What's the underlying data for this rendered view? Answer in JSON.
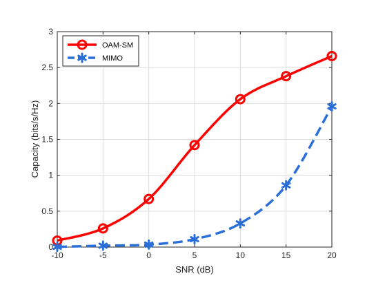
{
  "chart_data": {
    "type": "line",
    "title": "",
    "xlabel": "SNR (dB)",
    "ylabel": "Capacity (bits/s/Hz)",
    "x": [
      -10,
      -5,
      0,
      5,
      10,
      15,
      20
    ],
    "xlim": [
      -10,
      20
    ],
    "ylim": [
      0,
      3
    ],
    "xticks": [
      "-10",
      "-5",
      "0",
      "5",
      "10",
      "15",
      "20"
    ],
    "yticks": [
      "0",
      "0.5",
      "1",
      "1.5",
      "2",
      "2.5",
      "3"
    ],
    "grid": true,
    "legend_position": "top-left",
    "series": [
      {
        "name": "OAM-SM",
        "values": [
          0.09,
          0.26,
          0.67,
          1.42,
          2.06,
          2.38,
          2.66
        ],
        "color": "#ff0000",
        "line_style": "solid",
        "marker": "circle"
      },
      {
        "name": "MIMO",
        "values": [
          0.003,
          0.02,
          0.035,
          0.11,
          0.33,
          0.86,
          1.96
        ],
        "color": "#2a6fd8",
        "line_style": "dashed",
        "marker": "asterisk"
      }
    ]
  }
}
